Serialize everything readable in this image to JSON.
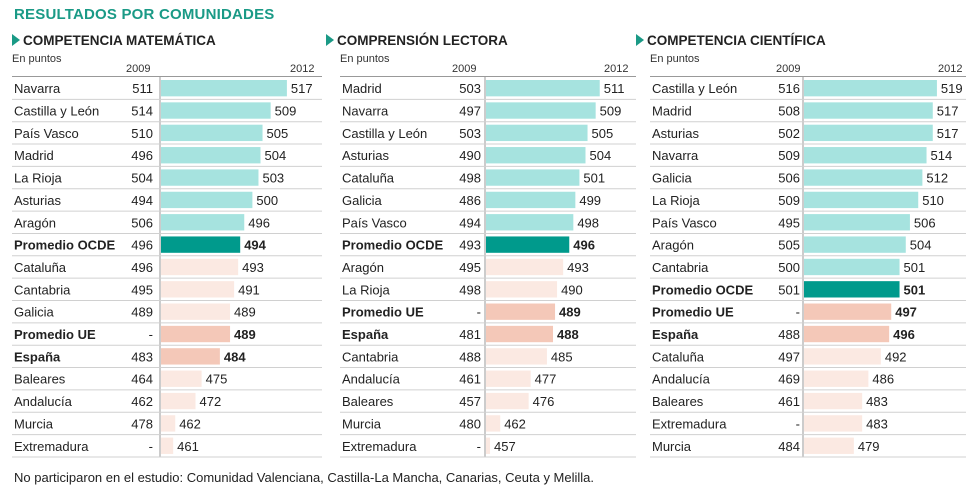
{
  "title": "RESULTADOS POR COMUNIDADES",
  "footer": "No participaron en el estudio: Comunidad Valenciana, Castilla-La Mancha, Canarias, Ceuta y Melilla.",
  "colors": {
    "above": "#a6e3df",
    "highlight_teal": "#009a8c",
    "highlight_salmon": "#f4c8b8",
    "below": "#fbe9e2",
    "brand": "#1a9a86"
  },
  "chart_data": [
    {
      "type": "bar",
      "title": "COMPETENCIA MATEMÁTICA",
      "subtitle": "En puntos",
      "col_2009": "2009",
      "col_2012": "2012",
      "xlim": [
        455,
        520
      ],
      "categories": [
        "Navarra",
        "Castilla y León",
        "País Vasco",
        "Madrid",
        "La Rioja",
        "Asturias",
        "Aragón",
        "Promedio OCDE",
        "Cataluña",
        "Cantabria",
        "Galicia",
        "Promedio UE",
        "España",
        "Baleares",
        "Andalucía",
        "Murcia",
        "Extremadura"
      ],
      "values_2009": [
        "511",
        "514",
        "510",
        "496",
        "504",
        "494",
        "506",
        "496",
        "496",
        "495",
        "489",
        "-",
        "483",
        "464",
        "462",
        "478",
        "-"
      ],
      "values_2012": [
        517,
        509,
        505,
        504,
        503,
        500,
        496,
        494,
        493,
        491,
        489,
        489,
        484,
        475,
        472,
        462,
        461
      ],
      "bar_style": [
        "above",
        "above",
        "above",
        "above",
        "above",
        "above",
        "above",
        "highlight_teal",
        "below",
        "below",
        "below",
        "highlight_salmon",
        "highlight_salmon",
        "below",
        "below",
        "below",
        "below"
      ],
      "bold": [
        false,
        false,
        false,
        false,
        false,
        false,
        false,
        true,
        false,
        false,
        false,
        true,
        true,
        false,
        false,
        false,
        false
      ]
    },
    {
      "type": "bar",
      "title": "COMPRENSIÓN LECTORA",
      "subtitle": "En puntos",
      "col_2009": "2009",
      "col_2012": "2012",
      "xlim": [
        455,
        520
      ],
      "categories": [
        "Madrid",
        "Navarra",
        "Castilla y León",
        "Asturias",
        "Cataluña",
        "Galicia",
        "País Vasco",
        "Promedio OCDE",
        "Aragón",
        "La Rioja",
        "Promedio UE",
        "España",
        "Cantabria",
        "Andalucía",
        "Baleares",
        "Murcia",
        "Extremadura"
      ],
      "values_2009": [
        "503",
        "497",
        "503",
        "490",
        "498",
        "486",
        "494",
        "493",
        "495",
        "498",
        "-",
        "481",
        "488",
        "461",
        "457",
        "480",
        "-"
      ],
      "values_2012": [
        511,
        509,
        505,
        504,
        501,
        499,
        498,
        496,
        493,
        490,
        489,
        488,
        485,
        477,
        476,
        462,
        457
      ],
      "bar_style": [
        "above",
        "above",
        "above",
        "above",
        "above",
        "above",
        "above",
        "highlight_teal",
        "below",
        "below",
        "highlight_salmon",
        "highlight_salmon",
        "below",
        "below",
        "below",
        "below",
        "below"
      ],
      "bold": [
        false,
        false,
        false,
        false,
        false,
        false,
        false,
        true,
        false,
        false,
        true,
        true,
        false,
        false,
        false,
        false,
        false
      ]
    },
    {
      "type": "bar",
      "title": "COMPETENCIA CIENTÍFICA",
      "subtitle": "En puntos",
      "col_2009": "2009",
      "col_2012": "2012",
      "xlim": [
        455,
        520
      ],
      "categories": [
        "Castilla y León",
        "Madrid",
        "Asturias",
        "Navarra",
        "Galicia",
        "La Rioja",
        "País Vasco",
        "Aragón",
        "Cantabria",
        "Promedio OCDE",
        "Promedio UE",
        "España",
        "Cataluña",
        "Andalucía",
        "Baleares",
        "Extremadura",
        "Murcia"
      ],
      "values_2009": [
        "516",
        "508",
        "502",
        "509",
        "506",
        "509",
        "495",
        "505",
        "500",
        "501",
        "-",
        "488",
        "497",
        "469",
        "461",
        "-",
        "484"
      ],
      "values_2012": [
        519,
        517,
        517,
        514,
        512,
        510,
        506,
        504,
        501,
        501,
        497,
        496,
        492,
        486,
        483,
        483,
        479
      ],
      "bar_style": [
        "above",
        "above",
        "above",
        "above",
        "above",
        "above",
        "above",
        "above",
        "above",
        "highlight_teal",
        "highlight_salmon",
        "highlight_salmon",
        "below",
        "below",
        "below",
        "below",
        "below"
      ],
      "bold": [
        false,
        false,
        false,
        false,
        false,
        false,
        false,
        false,
        false,
        true,
        true,
        true,
        false,
        false,
        false,
        false,
        false
      ]
    }
  ]
}
